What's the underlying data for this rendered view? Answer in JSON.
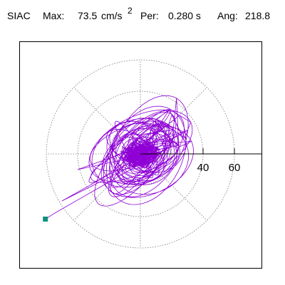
{
  "header": {
    "station": "SIAC",
    "max_label": "Max:",
    "max_value": "73.5",
    "max_unit": "cm/s",
    "max_unit_exp": "2",
    "per_label": "Per:",
    "per_value": "0.280 s",
    "ang_label": "Ang:",
    "ang_value": "218.8"
  },
  "chart_data": {
    "type": "polar-hodogram",
    "title": "",
    "radial_ticks": [
      40,
      60
    ],
    "radial_rings": [
      20,
      40,
      60
    ],
    "spoke_angles_deg": [
      0,
      45,
      90,
      135,
      180,
      225,
      270,
      315
    ],
    "grid": "dotted",
    "max_amplitude": 73.5,
    "angle_deg": 218.8,
    "trace_end_marker": [
      -60.6,
      -41.6
    ],
    "colors": {
      "trace": "#8e00d5",
      "marker": "#10907c",
      "grid": "#777777",
      "frame": "#000000"
    }
  }
}
